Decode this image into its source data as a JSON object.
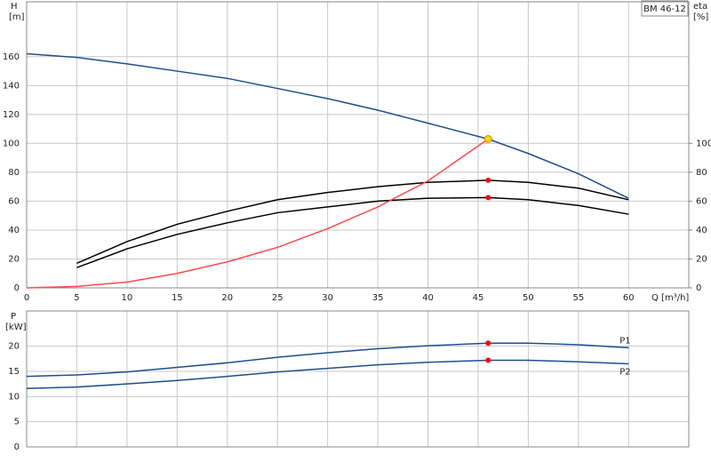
{
  "chart_data": [
    {
      "type": "line",
      "title": "BM 46-12",
      "ylabel": "H",
      "yunit": "[m]",
      "y2label": "eta",
      "y2unit": "[%]",
      "xlabel": "Q [m³/h]",
      "x": [
        0,
        5,
        10,
        15,
        20,
        25,
        30,
        35,
        40,
        46,
        50,
        55,
        60
      ],
      "xlim": [
        0,
        66
      ],
      "xticks": [
        0,
        5,
        10,
        15,
        20,
        25,
        30,
        35,
        40,
        45,
        50,
        55,
        60
      ],
      "ylim": [
        0,
        198
      ],
      "yticks": [
        0,
        20,
        40,
        60,
        80,
        100,
        120,
        140,
        160
      ],
      "y2lim": [
        0,
        198
      ],
      "y2ticks": [
        0,
        20,
        40,
        60,
        80,
        100
      ],
      "grid": true,
      "series": [
        {
          "color": "#1f4e8c",
          "values": [
            162,
            159.5,
            155,
            150,
            145,
            138,
            131,
            123,
            114,
            103,
            93,
            79,
            62
          ]
        },
        {
          "color": "#000000",
          "axis": "y2",
          "values": [
            null,
            17,
            32,
            44,
            53,
            61,
            66,
            70,
            73,
            74.5,
            73,
            69,
            61
          ]
        },
        {
          "color": "#000000",
          "axis": "y2",
          "values": [
            null,
            14,
            27,
            37,
            45,
            52,
            56,
            60,
            62,
            62.5,
            61,
            57,
            51
          ]
        },
        {
          "color": "#ff4a4a",
          "values": [
            0,
            1,
            4,
            10,
            18,
            28,
            41,
            56,
            74,
            103,
            null,
            null,
            null
          ]
        }
      ],
      "markers": [
        {
          "x": 46,
          "y": 103,
          "color": "#ffd700"
        },
        {
          "x": 46,
          "y": 74.5,
          "color": "#ff0000",
          "axis": "y2"
        },
        {
          "x": 46,
          "y": 62.5,
          "color": "#ff0000",
          "axis": "y2"
        }
      ]
    },
    {
      "type": "line",
      "ylabel": "P",
      "yunit": "[kW]",
      "x": [
        0,
        5,
        10,
        15,
        20,
        25,
        30,
        35,
        40,
        46,
        50,
        55,
        60
      ],
      "xlim": [
        0,
        66
      ],
      "ylim": [
        0,
        27
      ],
      "yticks": [
        0,
        5,
        10,
        15,
        20
      ],
      "grid": true,
      "series": [
        {
          "name": "P1",
          "color": "#1f4e8c",
          "values": [
            14,
            14.3,
            14.9,
            15.8,
            16.7,
            17.8,
            18.7,
            19.5,
            20.1,
            20.6,
            20.6,
            20.3,
            19.7
          ]
        },
        {
          "name": "P2",
          "color": "#1f4e8c",
          "values": [
            11.6,
            11.9,
            12.5,
            13.2,
            14,
            14.9,
            15.6,
            16.3,
            16.8,
            17.2,
            17.2,
            16.9,
            16.5
          ]
        }
      ],
      "markers": [
        {
          "x": 46,
          "y": 20.6,
          "color": "#ff0000"
        },
        {
          "x": 46,
          "y": 17.2,
          "color": "#ff0000"
        }
      ]
    }
  ]
}
